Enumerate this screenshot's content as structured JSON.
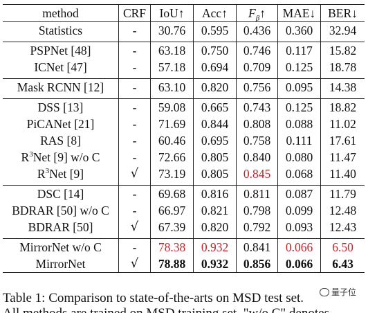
{
  "table": {
    "headers": {
      "method": "method",
      "crf": "CRF",
      "iou": "IoU↑",
      "acc": "Acc↑",
      "fbeta_main": "F",
      "fbeta_sub": "β",
      "fbeta_arrow": "↑",
      "mae": "MAE↓",
      "ber": "BER↓"
    },
    "rows": [
      {
        "method": "Statistics",
        "crf": "-",
        "iou": "30.76",
        "acc": "0.595",
        "fbeta": "0.436",
        "mae": "0.360",
        "ber": "32.94"
      },
      {
        "method": "PSPNet [48]",
        "crf": "-",
        "iou": "63.18",
        "acc": "0.750",
        "fbeta": "0.746",
        "mae": "0.117",
        "ber": "15.82"
      },
      {
        "method": "ICNet [47]",
        "crf": "-",
        "iou": "57.18",
        "acc": "0.694",
        "fbeta": "0.709",
        "mae": "0.125",
        "ber": "18.78"
      },
      {
        "method": "Mask RCNN [12]",
        "crf": "-",
        "iou": "63.10",
        "acc": "0.820",
        "fbeta": "0.756",
        "mae": "0.095",
        "ber": "14.38"
      },
      {
        "method": "DSS [13]",
        "crf": "-",
        "iou": "59.08",
        "acc": "0.665",
        "fbeta": "0.743",
        "mae": "0.125",
        "ber": "18.82"
      },
      {
        "method": "PiCANet [21]",
        "crf": "-",
        "iou": "71.69",
        "acc": "0.844",
        "fbeta": "0.808",
        "mae": "0.088",
        "ber": "11.02"
      },
      {
        "method": "RAS [8]",
        "crf": "-",
        "iou": "60.46",
        "acc": "0.695",
        "fbeta": "0.758",
        "mae": "0.111",
        "ber": "17.61"
      },
      {
        "method_prefix": "R",
        "method_sup": "3",
        "method_suffix": "Net [9] w/o C",
        "crf": "-",
        "iou": "72.66",
        "acc": "0.805",
        "fbeta": "0.840",
        "mae": "0.080",
        "ber": "11.47"
      },
      {
        "method_prefix": "R",
        "method_sup": "3",
        "method_suffix": "Net [9]",
        "crf": "√",
        "iou": "73.19",
        "acc": "0.805",
        "fbeta": "0.845",
        "mae": "0.068",
        "ber": "11.40"
      },
      {
        "method": "DSC [14]",
        "crf": "-",
        "iou": "69.68",
        "acc": "0.816",
        "fbeta": "0.811",
        "mae": "0.087",
        "ber": "11.79"
      },
      {
        "method": "BDRAR [50] w/o C",
        "crf": "-",
        "iou": "66.97",
        "acc": "0.821",
        "fbeta": "0.798",
        "mae": "0.099",
        "ber": "12.48"
      },
      {
        "method": "BDRAR [50]",
        "crf": "√",
        "iou": "67.39",
        "acc": "0.820",
        "fbeta": "0.792",
        "mae": "0.093",
        "ber": "12.43"
      },
      {
        "method": "MirrorNet w/o C",
        "crf": "-",
        "iou": "78.38",
        "acc": "0.932",
        "fbeta": "0.841",
        "mae": "0.066",
        "ber": "6.50"
      },
      {
        "method": "MirrorNet",
        "crf": "√",
        "iou": "78.88",
        "acc": "0.932",
        "fbeta": "0.856",
        "mae": "0.066",
        "ber": "6.43"
      }
    ]
  },
  "caption": {
    "line1": "Table 1: Comparison to state-of-the-arts on MSD test set.",
    "line2": "All methods are trained on MSD training set. \"w/o C\" denotes"
  },
  "watermark": {
    "text": "量子位"
  },
  "colors": {
    "highlight_red": "#c0262b",
    "rule": "#222222"
  }
}
